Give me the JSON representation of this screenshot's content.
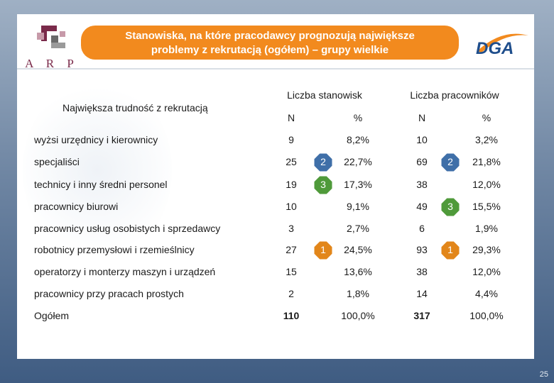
{
  "title": {
    "line1": "Stanowiska, na które pracodawcy prognozują największe",
    "line2": "problemy z rekrutacją (ogółem) – grupy wielkie"
  },
  "logos": {
    "arp": "A R P",
    "dga": "DGA"
  },
  "headers": {
    "row_label": "Największa trudność z rekrutacją",
    "group1": "Liczba stanowisk",
    "group2": "Liczba pracowników",
    "n1": "N",
    "pct1": "%",
    "n2": "N",
    "pct2": "%"
  },
  "rows": [
    {
      "label": "wyżsi urzędnicy i kierownicy",
      "n1": "9",
      "pct1": "8,2%",
      "n2": "10",
      "pct2": "3,2%"
    },
    {
      "label": "specjaliści",
      "n1": "25",
      "pct1": "22,7%",
      "n2": "69",
      "pct2": "21,8%"
    },
    {
      "label": "technicy i inny średni personel",
      "n1": "19",
      "pct1": "17,3%",
      "n2": "38",
      "pct2": "12,0%"
    },
    {
      "label": "pracownicy biurowi",
      "n1": "10",
      "pct1": "9,1%",
      "n2": "49",
      "pct2": "15,5%"
    },
    {
      "label": "pracownicy usług osobistych i sprzedawcy",
      "n1": "3",
      "pct1": "2,7%",
      "n2": "6",
      "pct2": "1,9%"
    },
    {
      "label": "robotnicy przemysłowi i rzemieślnicy",
      "n1": "27",
      "pct1": "24,5%",
      "n2": "93",
      "pct2": "29,3%"
    },
    {
      "label": "operatorzy i monterzy maszyn i urządzeń",
      "n1": "15",
      "pct1": "13,6%",
      "n2": "38",
      "pct2": "12,0%"
    },
    {
      "label": "pracownicy przy pracach prostych",
      "n1": "2",
      "pct1": "1,8%",
      "n2": "14",
      "pct2": "4,4%"
    },
    {
      "label": "Ogółem",
      "n1": "110",
      "pct1": "100,0%",
      "n2": "317",
      "pct2": "100,0%"
    }
  ],
  "badges": {
    "stanowiska": [
      {
        "rank": "2",
        "row_index": 1
      },
      {
        "rank": "3",
        "row_index": 2
      },
      {
        "rank": "1",
        "row_index": 5
      }
    ],
    "pracownicy": [
      {
        "rank": "2",
        "row_index": 1
      },
      {
        "rank": "3",
        "row_index": 3
      },
      {
        "rank": "1",
        "row_index": 5
      }
    ]
  },
  "colors": {
    "rank1": "#e2861a",
    "rank2": "#3f6fa8",
    "rank3": "#4f9a3a",
    "banner": "#f28a1e"
  },
  "page_number": "25"
}
